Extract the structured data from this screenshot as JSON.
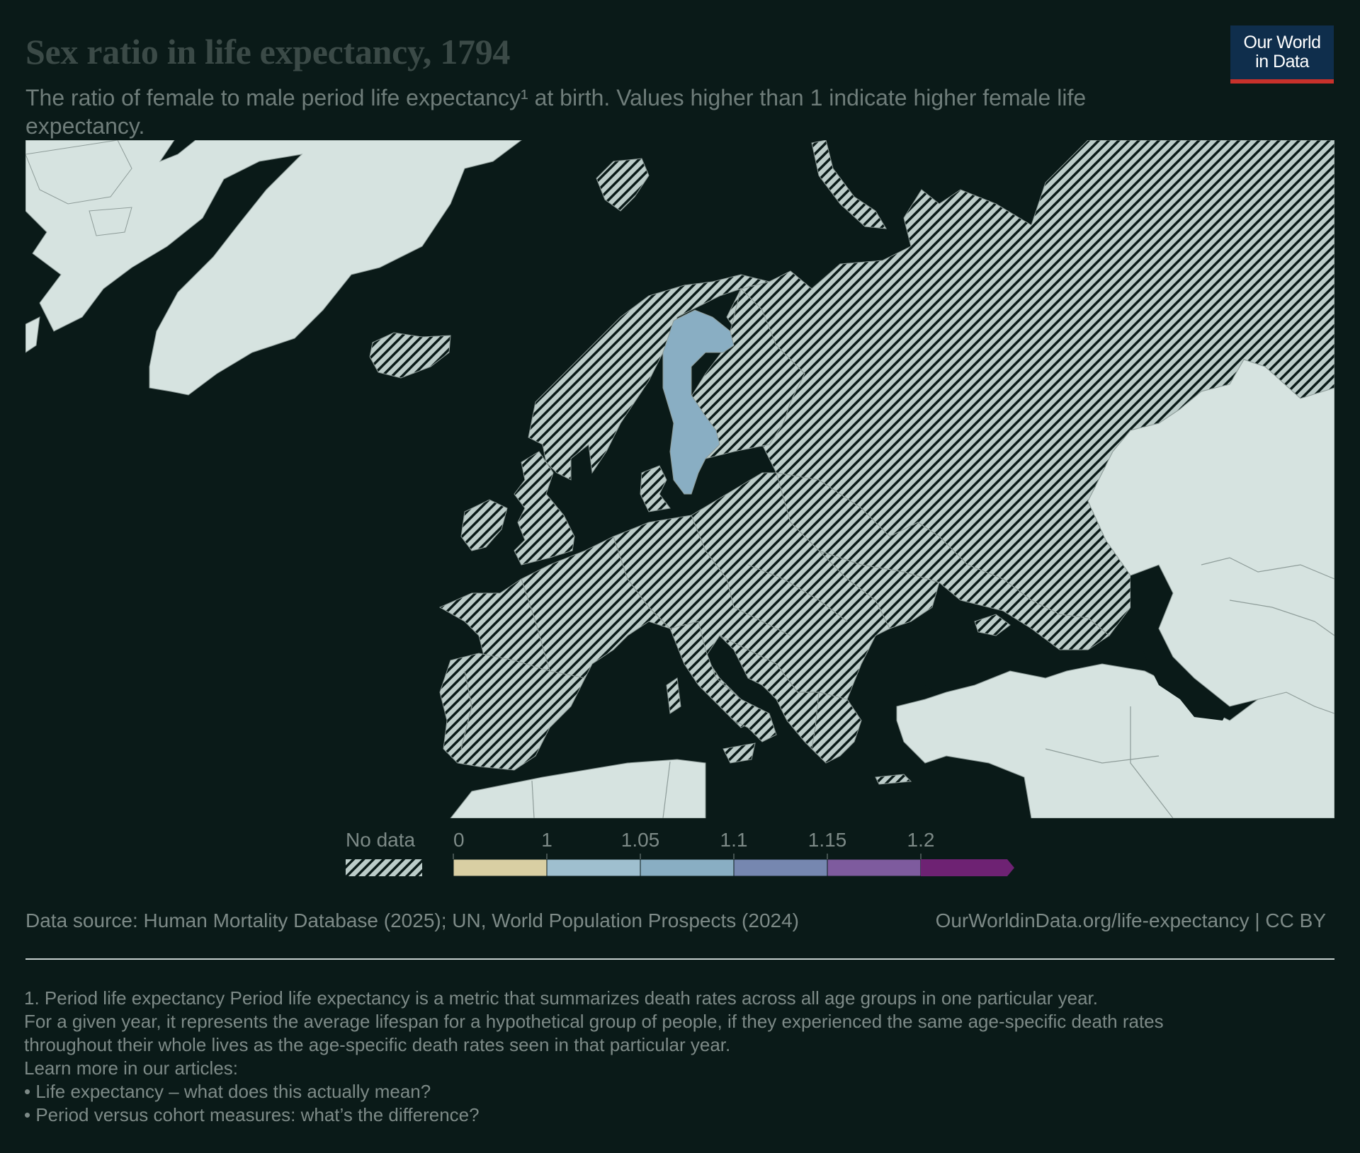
{
  "header": {
    "title": "Sex ratio in life expectancy, 1794",
    "subtitle": "The ratio of female to male period life expectancy¹ at birth. Values higher than 1 indicate higher female life expectancy.",
    "logo_line1": "Our World",
    "logo_line2": "in Data"
  },
  "legend": {
    "no_data_label": "No data",
    "ticks": [
      "0",
      "1",
      "1.05",
      "1.1",
      "1.15",
      "1.2"
    ],
    "bins": [
      {
        "from": 0,
        "to": 1,
        "color": "#d9cfa3"
      },
      {
        "from": 1,
        "to": 1.05,
        "color": "#9fbfcf"
      },
      {
        "from": 1.05,
        "to": 1.1,
        "color": "#89aec3"
      },
      {
        "from": 1.1,
        "to": 1.15,
        "color": "#7687b0"
      },
      {
        "from": 1.15,
        "to": 1.2,
        "color": "#7e5b9e"
      },
      {
        "from": 1.2,
        "to": null,
        "color": "#6e2273"
      }
    ]
  },
  "map_data": {
    "year": 1794,
    "regions": [
      {
        "name": "Sweden",
        "status": "data",
        "bin": "1.05–1.1",
        "color": "#89aec3"
      }
    ],
    "colors": {
      "background": "#0a1a18",
      "no_data_fill": "#bcccc9",
      "no_data_hatch": "#0a1a18",
      "outside_region_fill": "#d6e3e0",
      "border": "#8e9c99"
    }
  },
  "footer": {
    "source": "Data source: Human Mortality Database (2025); UN, World Population Prospects (2024)",
    "url": "OurWorldinData.org/life-expectancy | CC BY"
  },
  "footnote": {
    "line1": "1. Period life expectancy Period life expectancy is a metric that summarizes death rates across all age groups in one particular year.",
    "line2": "For a given year, it represents the average lifespan for a hypothetical group of people, if they experienced the same age-specific death rates",
    "line3": "throughout their whole lives as the age-specific death rates seen in that particular year.",
    "line4": "Learn more in our articles:",
    "link1": "• Life expectancy – what does this actually mean?",
    "link2": "• Period versus cohort measures: what’s the difference?"
  }
}
